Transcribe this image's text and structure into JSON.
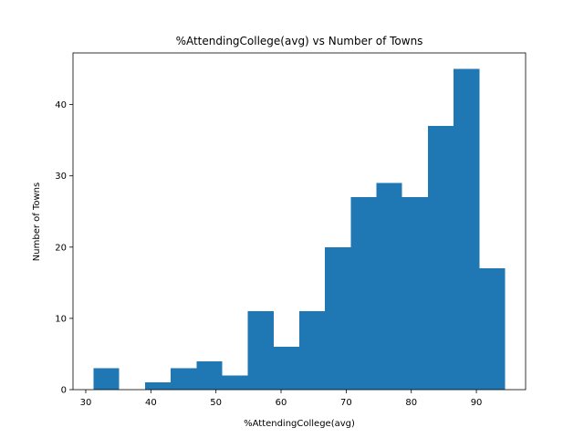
{
  "chart_data": {
    "type": "bar",
    "subtype": "histogram",
    "title": "%AttendingCollege(avg) vs Number of Towns",
    "xlabel": "%AttendingCollege(avg)",
    "ylabel": "Number of Towns",
    "bin_edges": [
      31.2,
      35.15,
      39.1,
      43.05,
      47.0,
      50.95,
      54.9,
      58.85,
      62.8,
      66.75,
      70.7,
      74.65,
      78.6,
      82.55,
      86.5,
      90.45,
      94.4
    ],
    "values": [
      3,
      0,
      1,
      3,
      4,
      2,
      11,
      6,
      11,
      20,
      27,
      29,
      27,
      37,
      45,
      17
    ],
    "xlim": [
      28.04,
      97.56
    ],
    "ylim": [
      0,
      47.25
    ],
    "xticks": [
      30,
      40,
      50,
      60,
      70,
      80,
      90
    ],
    "yticks": [
      0,
      10,
      20,
      30,
      40
    ],
    "bar_color": "#1f77b4",
    "grid": false,
    "legend": "none"
  }
}
